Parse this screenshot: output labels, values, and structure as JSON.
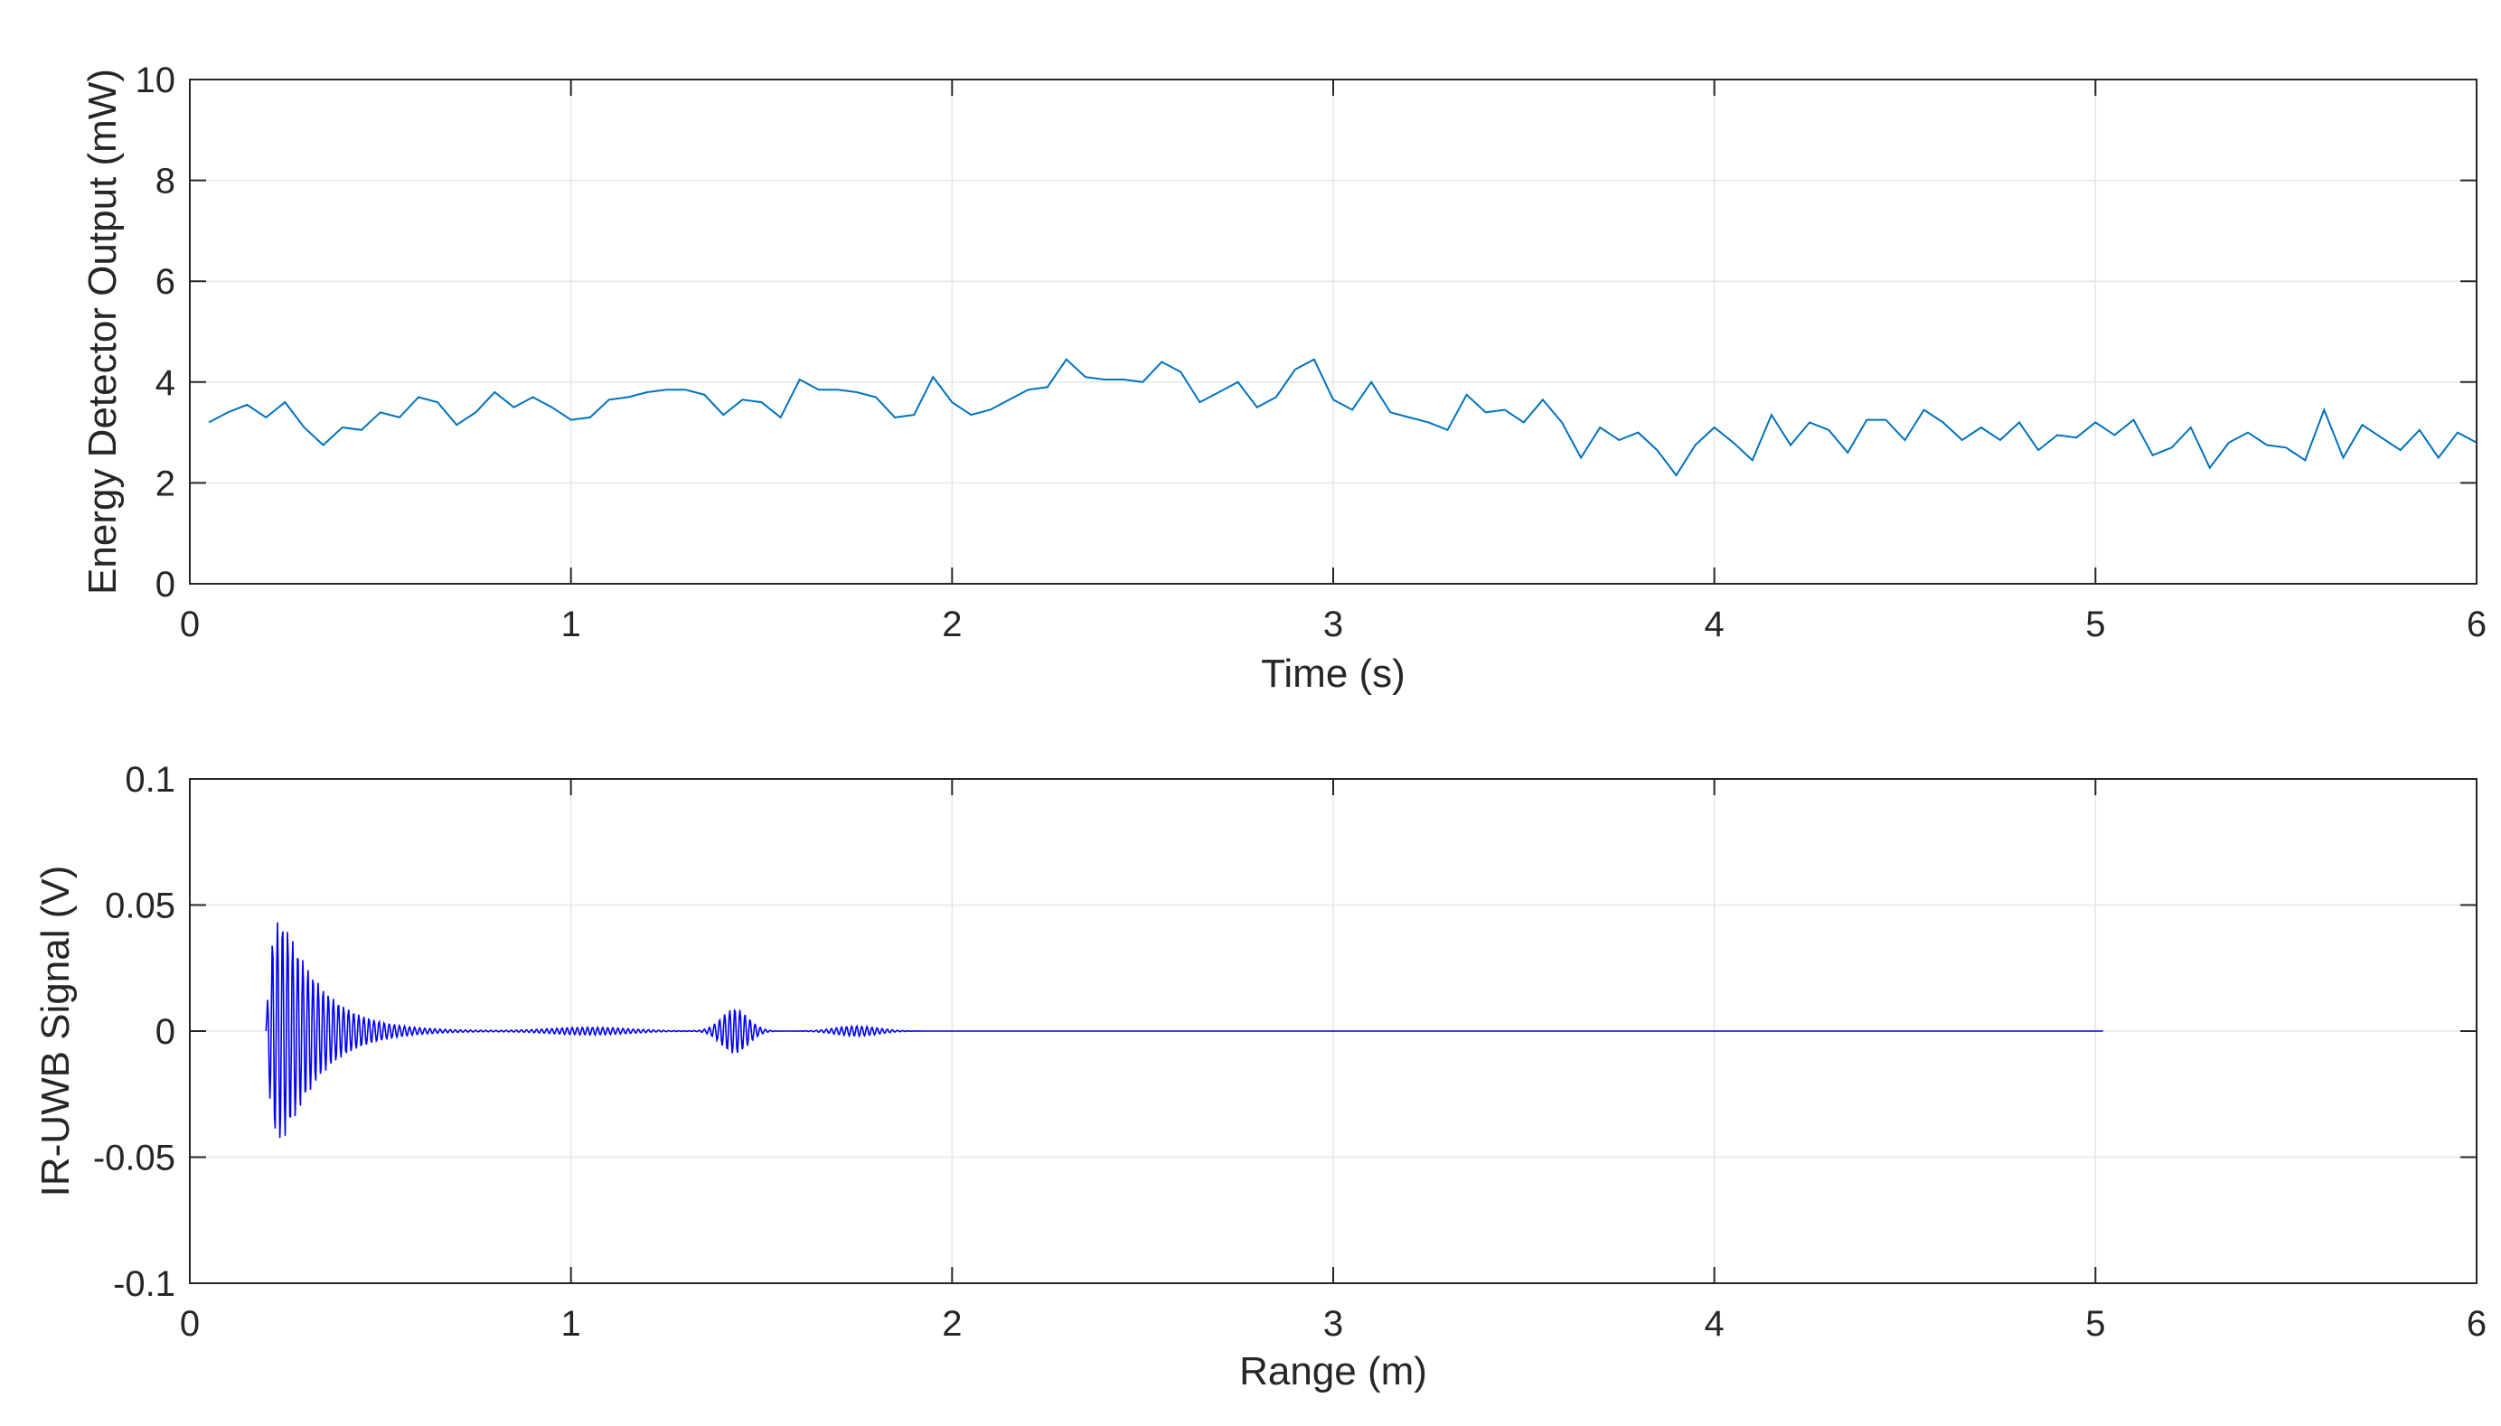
{
  "chart_data": [
    {
      "type": "line",
      "title": "",
      "xlabel": "Time (s)",
      "ylabel": "Energy Detector Output (mW)",
      "xlim": [
        0,
        6
      ],
      "ylim": [
        0,
        10
      ],
      "xticks": [
        "0",
        "1",
        "2",
        "3",
        "4",
        "5",
        "6"
      ],
      "yticks": [
        "0",
        "2",
        "4",
        "6",
        "8",
        "10"
      ],
      "grid": true,
      "line_color": "#0072BD",
      "series": [
        {
          "x": [
            0.05,
            0.1,
            0.15,
            0.2,
            0.25,
            0.3,
            0.35,
            0.4,
            0.45,
            0.5,
            0.55,
            0.6,
            0.65,
            0.7,
            0.75,
            0.8,
            0.85,
            0.9,
            0.95,
            1.0,
            1.05,
            1.1,
            1.15,
            1.2,
            1.25,
            1.3,
            1.35,
            1.4,
            1.45,
            1.5,
            1.55,
            1.6,
            1.65,
            1.7,
            1.75,
            1.8,
            1.85,
            1.9,
            1.95,
            2.0,
            2.05,
            2.1,
            2.15,
            2.2,
            2.25,
            2.3,
            2.35,
            2.4,
            2.45,
            2.5,
            2.55,
            2.6,
            2.65,
            2.7,
            2.75,
            2.8,
            2.85,
            2.9,
            2.95,
            3.0,
            3.05,
            3.1,
            3.15,
            3.2,
            3.25,
            3.3,
            3.35,
            3.4,
            3.45,
            3.5,
            3.55,
            3.6,
            3.65,
            3.7,
            3.75,
            3.8,
            3.85,
            3.9,
            3.95,
            4.0,
            4.05,
            4.1,
            4.15,
            4.2,
            4.25,
            4.3,
            4.35,
            4.4,
            4.45,
            4.5,
            4.55,
            4.6,
            4.65,
            4.7,
            4.75,
            4.8,
            4.85,
            4.9,
            4.95,
            5.0,
            5.05,
            5.1,
            5.15,
            5.2,
            5.25,
            5.3,
            5.35,
            5.4,
            5.45,
            5.5,
            5.55,
            5.6,
            5.65,
            5.7,
            5.75,
            5.8,
            5.85,
            5.9,
            5.95,
            6.0
          ],
          "y": [
            3.2,
            3.4,
            3.55,
            3.3,
            3.6,
            3.1,
            2.75,
            3.1,
            3.05,
            3.4,
            3.3,
            3.7,
            3.6,
            3.15,
            3.4,
            3.8,
            3.5,
            3.7,
            3.5,
            3.25,
            3.3,
            3.65,
            3.7,
            3.8,
            3.85,
            3.85,
            3.75,
            3.35,
            3.65,
            3.6,
            3.3,
            4.05,
            3.85,
            3.85,
            3.8,
            3.7,
            3.3,
            3.35,
            4.1,
            3.6,
            3.35,
            3.45,
            3.65,
            3.85,
            3.9,
            4.45,
            4.1,
            4.05,
            4.05,
            4.0,
            4.4,
            4.2,
            3.6,
            3.8,
            4.0,
            3.5,
            3.7,
            4.25,
            4.45,
            3.65,
            3.45,
            4.0,
            3.4,
            3.3,
            3.2,
            3.05,
            3.75,
            3.4,
            3.45,
            3.2,
            3.65,
            3.2,
            2.5,
            3.1,
            2.85,
            3.0,
            2.65,
            2.15,
            2.75,
            3.1,
            2.8,
            2.45,
            3.35,
            2.75,
            3.2,
            3.05,
            2.6,
            3.25,
            3.25,
            2.85,
            3.45,
            3.2,
            2.85,
            3.1,
            2.85,
            3.2,
            2.65,
            2.95,
            2.9,
            3.2,
            2.95,
            3.25,
            2.55,
            2.7,
            3.1,
            2.3,
            2.8,
            3.0,
            2.75,
            2.7,
            2.45,
            3.45,
            2.5,
            3.15,
            2.9,
            2.65,
            3.05,
            2.5,
            3.0,
            2.8
          ]
        }
      ]
    },
    {
      "type": "line",
      "title": "",
      "xlabel": "Range (m)",
      "ylabel": "IR-UWB Signal (V)",
      "xlim": [
        0,
        6
      ],
      "ylim": [
        -0.1,
        0.1
      ],
      "xticks": [
        "0",
        "1",
        "2",
        "3",
        "4",
        "5",
        "6"
      ],
      "yticks": [
        "-0.1",
        "-0.05",
        "0",
        "0.05",
        "0.1"
      ],
      "grid": true,
      "line_color": "#0000FF",
      "signal": {
        "x_start": 0.2,
        "x_end": 5.02,
        "samples": 2400,
        "cycles_per_meter": 75,
        "components": [
          {
            "amplitude": 0.075,
            "onset": 0.2,
            "decay": 0.1,
            "rise": 0.02
          },
          {
            "amplitude": 0.009,
            "center": 1.43,
            "width": 0.05
          },
          {
            "amplitude": 0.0015,
            "center": 1.05,
            "width": 0.15
          },
          {
            "amplitude": 0.002,
            "center": 1.75,
            "width": 0.08
          }
        ]
      }
    }
  ]
}
